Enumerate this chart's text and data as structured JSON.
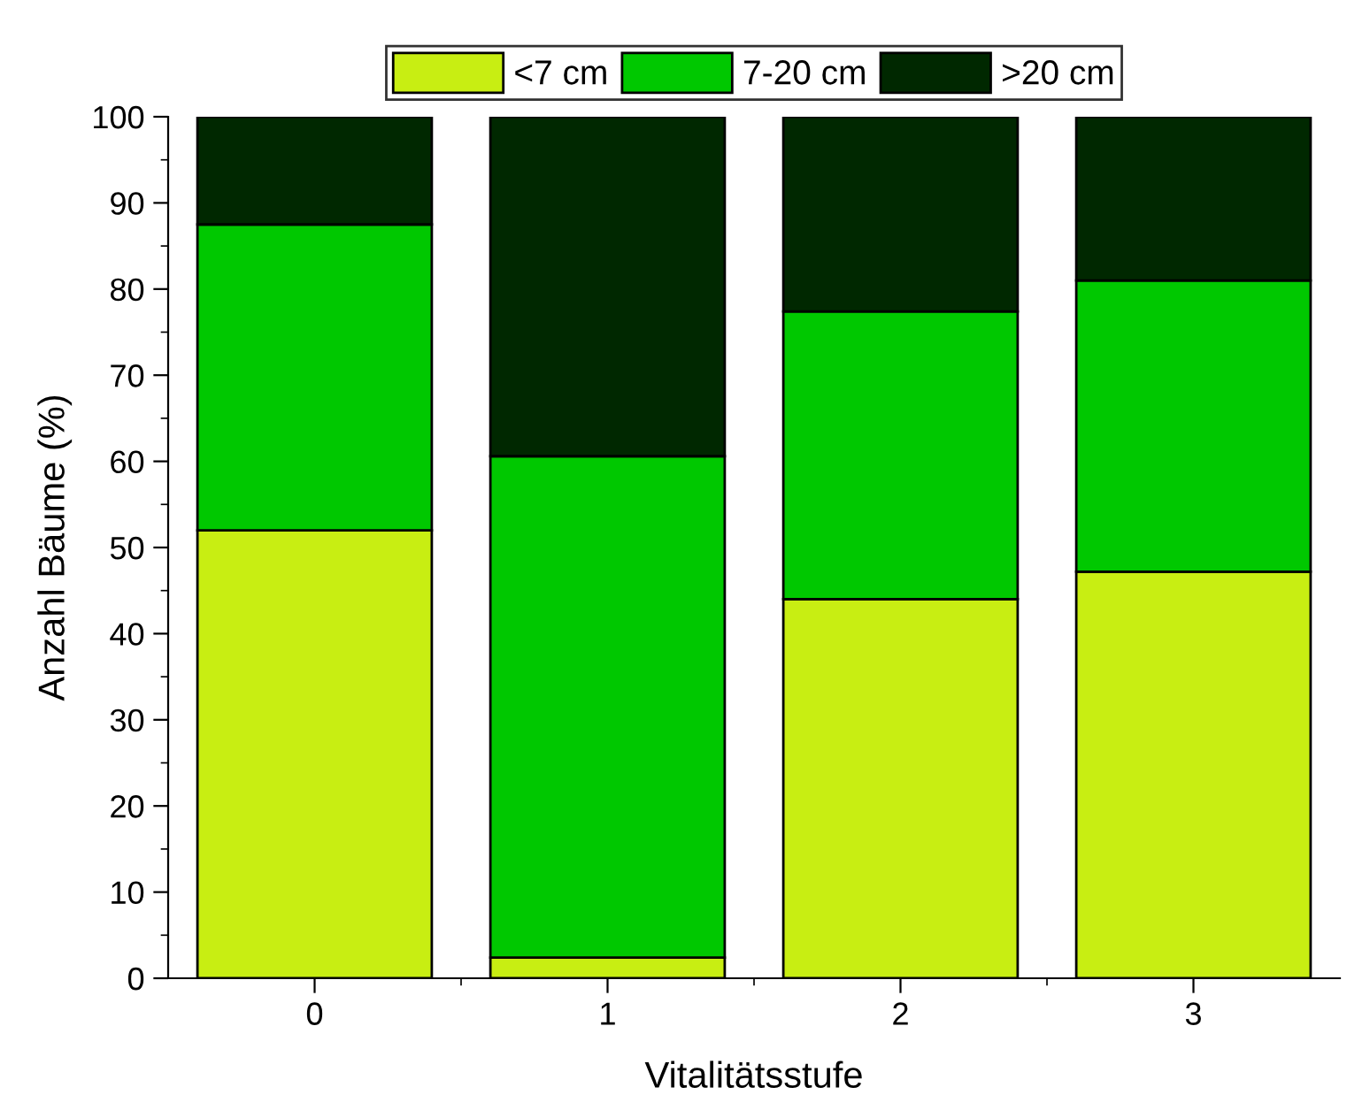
{
  "chart_data": {
    "type": "bar",
    "stacked": true,
    "xlabel": "Vitalitätsstufe",
    "ylabel": "Anzahl Bäume (%)",
    "categories": [
      "0",
      "1",
      "2",
      "3"
    ],
    "series": [
      {
        "name": "<7 cm",
        "color": "#c8ee12",
        "values": [
          52,
          2.4,
          44,
          47.2
        ]
      },
      {
        "name": "7-20 cm",
        "color": "#00c800",
        "values": [
          35.5,
          58.2,
          33.4,
          33.8
        ]
      },
      {
        "name": ">20 cm",
        "color": "#002800",
        "values": [
          12.5,
          39.4,
          22.6,
          19
        ]
      }
    ],
    "ylim": [
      0,
      100
    ],
    "yticks": [
      0,
      10,
      20,
      30,
      40,
      50,
      60,
      70,
      80,
      90,
      100
    ],
    "grid": false,
    "legend": "top"
  }
}
